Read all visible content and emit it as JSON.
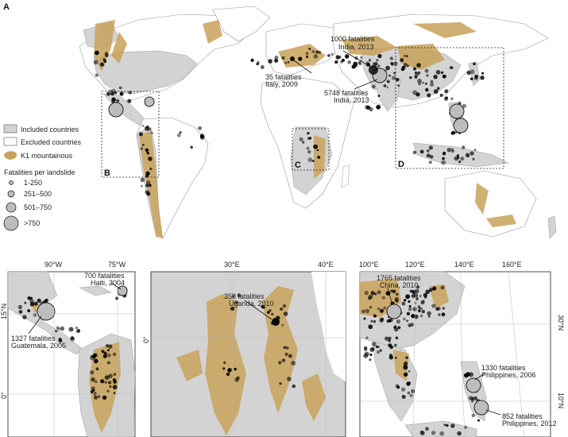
{
  "figure": {
    "panel_label": "A",
    "region_labels": [
      "B",
      "C",
      "D"
    ]
  },
  "legend": {
    "included": "Included countries",
    "excluded": "Excluded countries",
    "mountainous": "K1 mountainous",
    "size_title": "Fatalities per landslide",
    "size_classes": [
      "1-250",
      "251–500",
      "501–750",
      ">750"
    ]
  },
  "annotations_main": [
    {
      "line1": "1000 fatalities",
      "line2": "India, 2013"
    },
    {
      "line1": "35 fatalities",
      "line2": "Italy, 2009"
    },
    {
      "line1": "5748 fatalities",
      "line2": "India, 2013"
    }
  ],
  "panel_b": {
    "top_ticks": [
      "90°W",
      "75°W"
    ],
    "left_ticks": [
      "15°N",
      "0°"
    ],
    "annotations": [
      {
        "line1": "700 fatalities",
        "line2": "Haiti, 2004"
      },
      {
        "line1": "1327 fatalities",
        "line2": "Guatemala, 2005"
      }
    ]
  },
  "panel_c": {
    "top_ticks": [
      "30°E",
      "40°E"
    ],
    "left_ticks": [
      "0°"
    ],
    "annotations": [
      {
        "line1": "358 fatalities",
        "line2": "Uganda, 2010"
      }
    ]
  },
  "panel_d": {
    "top_ticks": [
      "100°E",
      "120°E",
      "140°E",
      "160°E"
    ],
    "right_ticks": [
      "30°N",
      "10°N"
    ],
    "annotations": [
      {
        "line1": "1765 fatalities",
        "line2": "China, 2010"
      },
      {
        "line1": "1330 fatalities",
        "line2": "Philippines, 2006"
      },
      {
        "line1": "852 fatalities",
        "line2": "Philippines, 2012"
      }
    ]
  },
  "colors": {
    "included": "#d3d3d3",
    "excluded": "#ffffff",
    "mountainous": "#c8a25a",
    "event": "#000000",
    "border": "#8c8c8c"
  }
}
